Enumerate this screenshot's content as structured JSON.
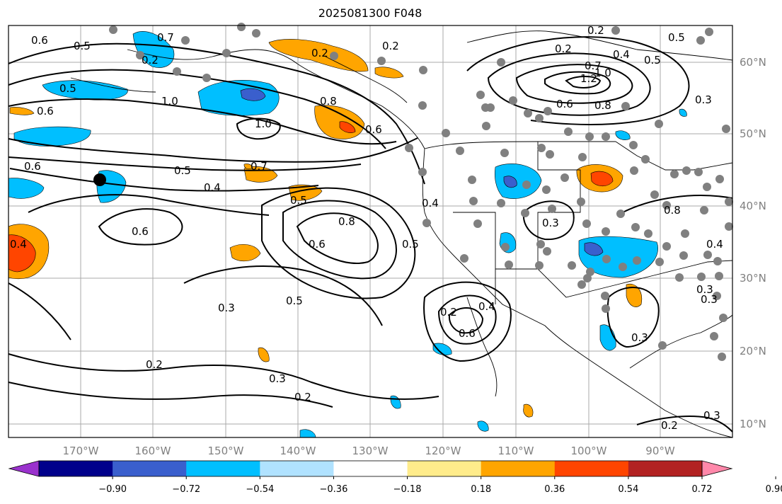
{
  "title": "2025081300 F048",
  "lon_labels": [
    "170°W",
    "160°W",
    "150°W",
    "140°W",
    "130°W",
    "120°W",
    "110°W",
    "100°W",
    "90°W"
  ],
  "lat_labels": [
    "60°N",
    "50°N",
    "40°N",
    "30°N",
    "20°N",
    "10°N"
  ],
  "colorbar": {
    "ticks": [
      "−0.90",
      "−0.72",
      "−0.54",
      "−0.36",
      "−0.18",
      "0.18",
      "0.36",
      "0.54",
      "0.72",
      "0.90"
    ],
    "colors": [
      "#9a32cd",
      "#00008b",
      "#3a5fcd",
      "#00bfff",
      "#b0e2ff",
      "#ffffff",
      "#ffec8b",
      "#ffa500",
      "#ff4500",
      "#b22222",
      "#ff88aa"
    ]
  },
  "contour_labels": [
    "0.6",
    "0.5",
    "0.7",
    "0.2",
    "0.2",
    "0.5",
    "0.4",
    "0.2",
    "0.5",
    "0.7",
    "1.0",
    "1.2",
    "0.6",
    "0.8",
    "0.3",
    "0.6",
    "0.5",
    "1.0",
    "0.8",
    "0.6",
    "1.0",
    "0.6",
    "0.5",
    "0.7",
    "0.4",
    "0.5",
    "0.6",
    "0.4",
    "0.8",
    "0.6",
    "0.5",
    "0.4",
    "0.3",
    "0.8",
    "0.3",
    "0.4",
    "0.3",
    "0.5",
    "0.2",
    "0.6",
    "0.4",
    "0.3",
    "0.2",
    "0.2",
    "0.3",
    "0.2",
    "0.3",
    "0.3",
    "0.2",
    "0.2"
  ],
  "colors": {
    "station_dot": "#808080",
    "marker": "#000000",
    "grid": "#aaaaaa"
  }
}
